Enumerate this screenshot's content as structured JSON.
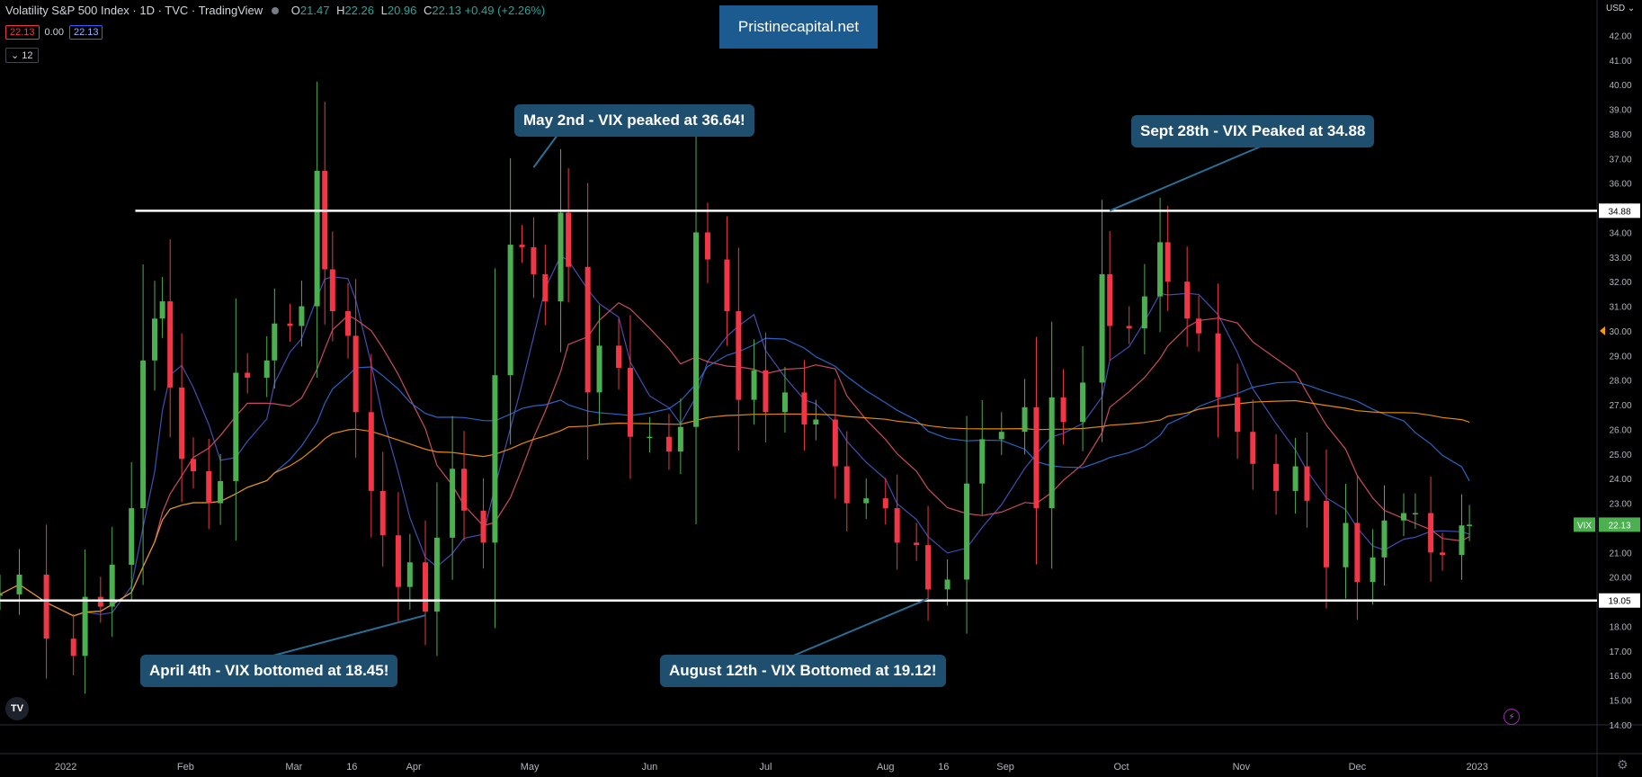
{
  "header": {
    "title": "Volatility S&P 500 Index · 1D · TVC · TradingView",
    "ohlc": [
      {
        "k": "O",
        "v": "21.47"
      },
      {
        "k": "H",
        "v": "22.26"
      },
      {
        "k": "L",
        "v": "20.96"
      },
      {
        "k": "C",
        "v": "22.13"
      }
    ],
    "change": "+0.49 (+2.26%)",
    "bid": "22.13",
    "spread": "0.00",
    "ask": "22.13",
    "indicators_count": "12"
  },
  "brand": "Pristinecapital.net",
  "callouts": {
    "may_peak": "May 2nd - VIX peaked at 36.64!",
    "sept_peak": "Sept 28th - VIX Peaked at 34.88",
    "april_bottom": "April 4th - VIX bottomed at 18.45!",
    "aug_bottom": "August 12th - VIX Bottomed at 19.12!"
  },
  "currency": "USD",
  "chart_data": {
    "type": "candlestick",
    "symbol": "VIX",
    "ylim": [
      14,
      43
    ],
    "y_ticks": [
      "14.00",
      "15.00",
      "16.00",
      "17.00",
      "18.00",
      "19.00",
      "20.00",
      "21.00",
      "22.00",
      "23.00",
      "24.00",
      "25.00",
      "26.00",
      "27.00",
      "28.00",
      "29.00",
      "30.00",
      "31.00",
      "32.00",
      "33.00",
      "34.00",
      "35.00",
      "36.00",
      "37.00",
      "38.00",
      "39.00",
      "40.00",
      "41.00",
      "42.00"
    ],
    "x_labels": [
      {
        "label": "2022",
        "date": "2022-01-01"
      },
      {
        "label": "Feb",
        "date": "2022-02-01"
      },
      {
        "label": "Mar",
        "date": "2022-03-01"
      },
      {
        "label": "16",
        "date": "2022-03-16"
      },
      {
        "label": "Apr",
        "date": "2022-04-01"
      },
      {
        "label": "May",
        "date": "2022-05-01"
      },
      {
        "label": "Jun",
        "date": "2022-06-01"
      },
      {
        "label": "Jul",
        "date": "2022-07-01"
      },
      {
        "label": "Aug",
        "date": "2022-08-01"
      },
      {
        "label": "16",
        "date": "2022-08-16"
      },
      {
        "label": "Sep",
        "date": "2022-09-01"
      },
      {
        "label": "Oct",
        "date": "2022-10-01"
      },
      {
        "label": "Nov",
        "date": "2022-11-01"
      },
      {
        "label": "Dec",
        "date": "2022-12-01"
      },
      {
        "label": "2023",
        "date": "2023-01-01"
      }
    ],
    "x_range": [
      "2021-12-15",
      "2023-02-01"
    ],
    "levels": [
      {
        "label": "34.88",
        "value": 34.88,
        "from": "2022-01-19"
      },
      {
        "label": "19.05",
        "value": 19.05,
        "from": "2021-12-15"
      }
    ],
    "last_price": {
      "symbol": "VIX",
      "label": "22.13",
      "value": 22.13
    },
    "alert_price": 30.0,
    "closes": [
      [
        "2021-12-15",
        19.3
      ],
      [
        "2021-12-20",
        20.1
      ],
      [
        "2021-12-27",
        17.5
      ],
      [
        "2022-01-03",
        16.8
      ],
      [
        "2022-01-06",
        19.2
      ],
      [
        "2022-01-10",
        18.8
      ],
      [
        "2022-01-13",
        20.5
      ],
      [
        "2022-01-18",
        22.8
      ],
      [
        "2022-01-21",
        28.8
      ],
      [
        "2022-01-24",
        30.5
      ],
      [
        "2022-01-26",
        31.2
      ],
      [
        "2022-01-28",
        27.7
      ],
      [
        "2022-01-31",
        24.8
      ],
      [
        "2022-02-03",
        24.3
      ],
      [
        "2022-02-07",
        23.0
      ],
      [
        "2022-02-10",
        23.9
      ],
      [
        "2022-02-14",
        28.3
      ],
      [
        "2022-02-17",
        28.1
      ],
      [
        "2022-02-22",
        28.8
      ],
      [
        "2022-02-24",
        30.3
      ],
      [
        "2022-02-28",
        30.2
      ],
      [
        "2022-03-03",
        31.0
      ],
      [
        "2022-03-07",
        36.5
      ],
      [
        "2022-03-09",
        32.5
      ],
      [
        "2022-03-11",
        30.8
      ],
      [
        "2022-03-15",
        29.8
      ],
      [
        "2022-03-17",
        26.7
      ],
      [
        "2022-03-21",
        23.5
      ],
      [
        "2022-03-24",
        21.7
      ],
      [
        "2022-03-28",
        19.6
      ],
      [
        "2022-03-31",
        20.6
      ],
      [
        "2022-04-04",
        18.6
      ],
      [
        "2022-04-07",
        21.6
      ],
      [
        "2022-04-11",
        24.4
      ],
      [
        "2022-04-14",
        22.7
      ],
      [
        "2022-04-19",
        21.4
      ],
      [
        "2022-04-22",
        28.2
      ],
      [
        "2022-04-26",
        33.5
      ],
      [
        "2022-04-29",
        33.4
      ],
      [
        "2022-05-02",
        32.3
      ],
      [
        "2022-05-05",
        31.2
      ],
      [
        "2022-05-09",
        34.8
      ],
      [
        "2022-05-11",
        32.6
      ],
      [
        "2022-05-16",
        27.5
      ],
      [
        "2022-05-19",
        29.4
      ],
      [
        "2022-05-24",
        28.5
      ],
      [
        "2022-05-27",
        25.7
      ],
      [
        "2022-06-01",
        25.7
      ],
      [
        "2022-06-06",
        25.1
      ],
      [
        "2022-06-09",
        26.1
      ],
      [
        "2022-06-13",
        34.0
      ],
      [
        "2022-06-16",
        32.9
      ],
      [
        "2022-06-21",
        30.8
      ],
      [
        "2022-06-24",
        27.2
      ],
      [
        "2022-06-28",
        28.4
      ],
      [
        "2022-07-01",
        26.7
      ],
      [
        "2022-07-06",
        27.5
      ],
      [
        "2022-07-11",
        26.2
      ],
      [
        "2022-07-14",
        26.4
      ],
      [
        "2022-07-19",
        24.5
      ],
      [
        "2022-07-22",
        23.0
      ],
      [
        "2022-07-27",
        23.2
      ],
      [
        "2022-08-01",
        22.8
      ],
      [
        "2022-08-04",
        21.4
      ],
      [
        "2022-08-09",
        21.3
      ],
      [
        "2022-08-12",
        19.5
      ],
      [
        "2022-08-17",
        19.9
      ],
      [
        "2022-08-22",
        23.8
      ],
      [
        "2022-08-26",
        25.6
      ],
      [
        "2022-08-31",
        25.9
      ],
      [
        "2022-09-06",
        26.9
      ],
      [
        "2022-09-09",
        22.8
      ],
      [
        "2022-09-13",
        27.3
      ],
      [
        "2022-09-16",
        26.3
      ],
      [
        "2022-09-21",
        27.9
      ],
      [
        "2022-09-26",
        32.3
      ],
      [
        "2022-09-28",
        30.2
      ],
      [
        "2022-10-03",
        30.1
      ],
      [
        "2022-10-07",
        31.4
      ],
      [
        "2022-10-11",
        33.6
      ],
      [
        "2022-10-13",
        32.0
      ],
      [
        "2022-10-18",
        30.5
      ],
      [
        "2022-10-21",
        29.9
      ],
      [
        "2022-10-26",
        27.3
      ],
      [
        "2022-10-31",
        25.9
      ],
      [
        "2022-11-04",
        24.6
      ],
      [
        "2022-11-10",
        23.5
      ],
      [
        "2022-11-15",
        24.5
      ],
      [
        "2022-11-18",
        23.1
      ],
      [
        "2022-11-23",
        20.4
      ],
      [
        "2022-11-28",
        22.2
      ],
      [
        "2022-12-01",
        19.8
      ],
      [
        "2022-12-05",
        20.8
      ],
      [
        "2022-12-08",
        22.3
      ],
      [
        "2022-12-13",
        22.6
      ],
      [
        "2022-12-16",
        22.6
      ],
      [
        "2022-12-20",
        21.0
      ],
      [
        "2022-12-23",
        20.9
      ],
      [
        "2022-12-28",
        22.1
      ],
      [
        "2022-12-30",
        22.13
      ]
    ],
    "moving_averages": [
      {
        "color": "#4a56c4",
        "period": 5
      },
      {
        "color": "#e0526c",
        "period": 10
      },
      {
        "color": "#2e6fd9",
        "period": 20
      },
      {
        "color": "#ff9800",
        "period": 80
      }
    ],
    "up_color": "#4caf50",
    "down_color": "#f23645"
  }
}
